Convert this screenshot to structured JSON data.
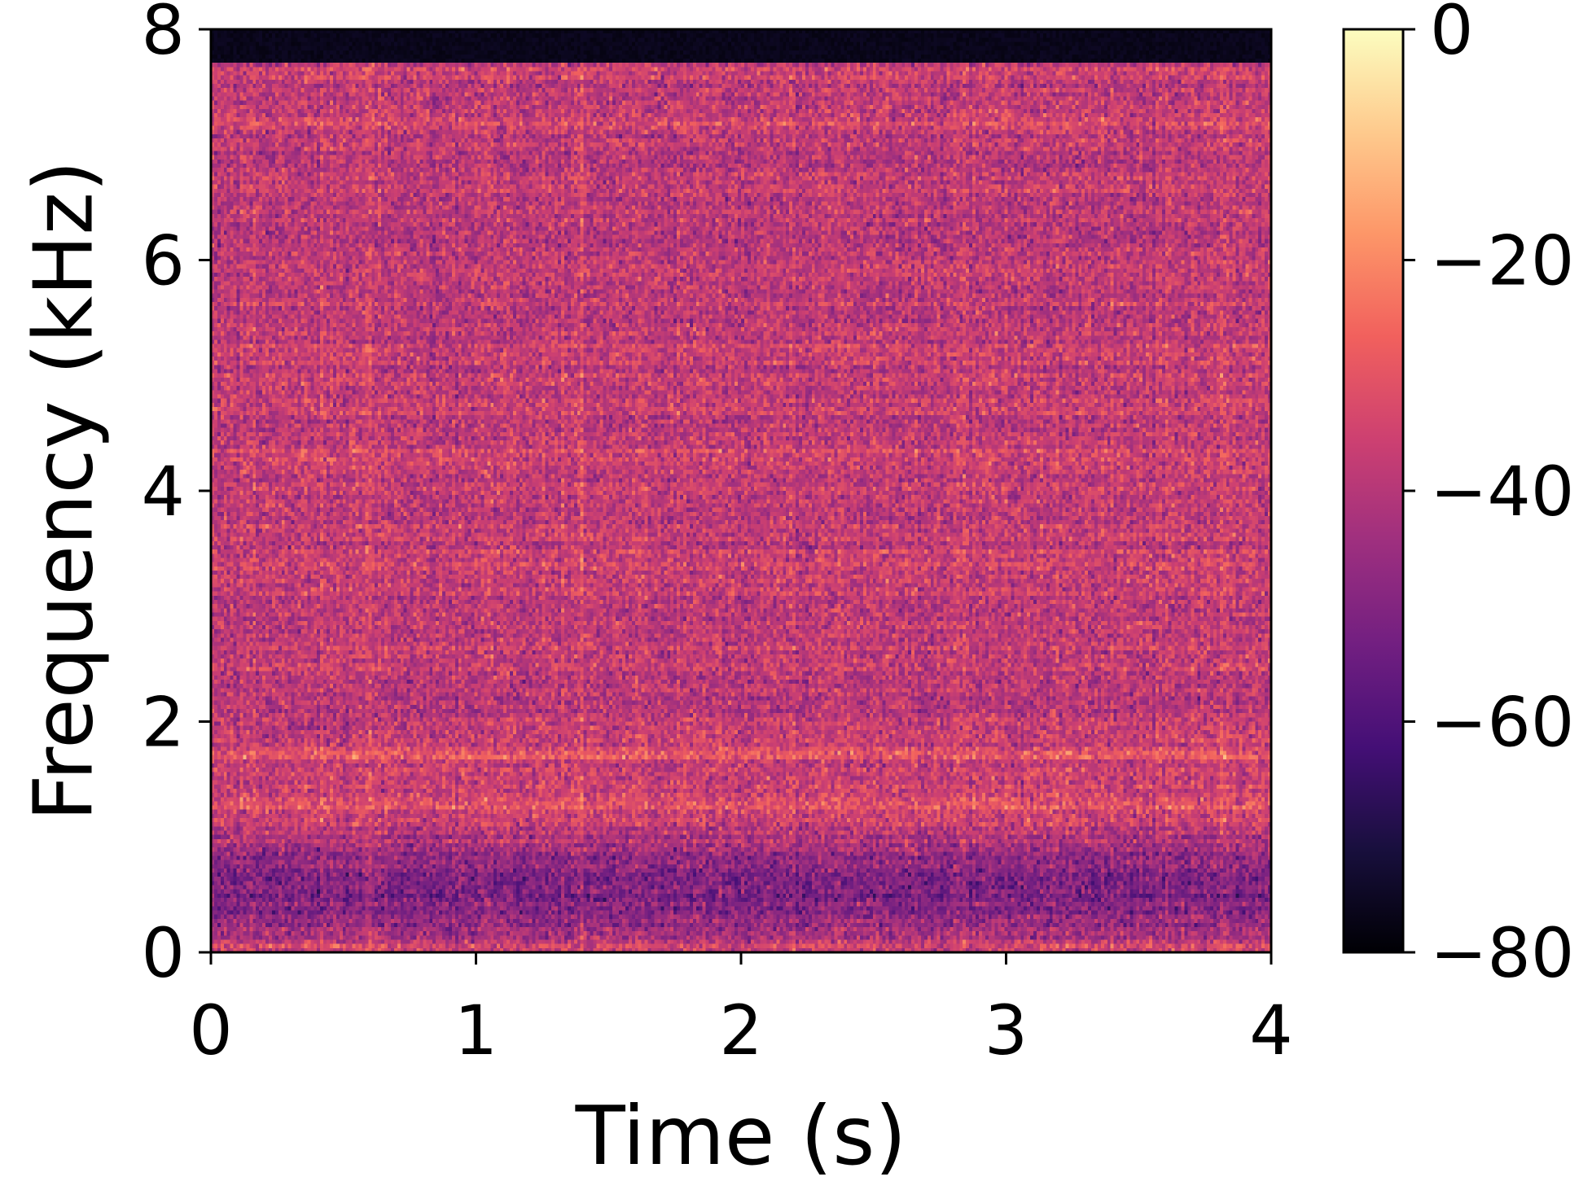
{
  "chart_data": {
    "type": "heatmap",
    "subtype": "spectrogram",
    "title": "",
    "xlabel": "Time (s)",
    "ylabel": "Frequency (kHz)",
    "xlim": [
      0,
      4
    ],
    "ylim": [
      0,
      8
    ],
    "x_ticks": [
      {
        "value": 0,
        "label": "0"
      },
      {
        "value": 1,
        "label": "1"
      },
      {
        "value": 2,
        "label": "2"
      },
      {
        "value": 3,
        "label": "3"
      },
      {
        "value": 4,
        "label": "4"
      }
    ],
    "y_ticks": [
      {
        "value": 0,
        "label": "0"
      },
      {
        "value": 2,
        "label": "2"
      },
      {
        "value": 4,
        "label": "4"
      },
      {
        "value": 6,
        "label": "6"
      },
      {
        "value": 8,
        "label": "8"
      }
    ],
    "colormap": "magma",
    "colormap_stops": [
      "#000004",
      "#180f3d",
      "#440f76",
      "#721f81",
      "#9e2f7f",
      "#cd4071",
      "#f1605d",
      "#fd9668",
      "#feca8d",
      "#fcfdbf"
    ],
    "colorbar": {
      "range": [
        -80,
        0
      ],
      "ticks": [
        {
          "value": 0,
          "label": "0"
        },
        {
          "value": -20,
          "label": "−20"
        },
        {
          "value": -40,
          "label": "−40"
        },
        {
          "value": -60,
          "label": "−60"
        },
        {
          "value": -80,
          "label": "−80"
        }
      ]
    },
    "grid": false,
    "notable_features": {
      "silent_band_khz": [
        7.7,
        8.0
      ],
      "bright_bands_khz": [
        1.72,
        1.25,
        4.3,
        7.2
      ],
      "dark_band_khz": [
        0.2,
        0.9
      ],
      "base_level_db": -38
    }
  }
}
